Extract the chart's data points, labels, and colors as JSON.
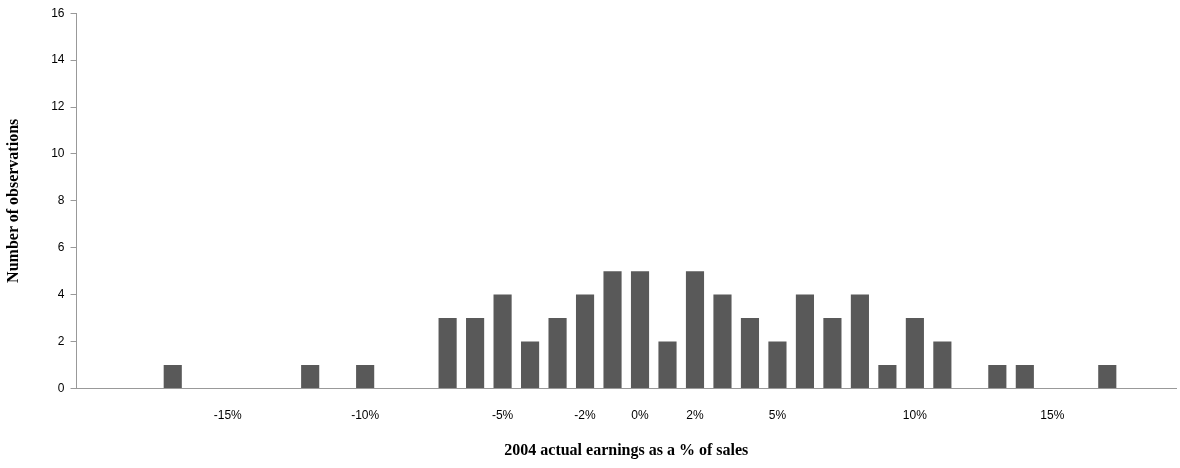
{
  "chart_data": {
    "type": "bar",
    "xlabel": "2004 actual earnings as a % of sales",
    "ylabel": "Number of observations",
    "categories": [
      null,
      null,
      null,
      null,
      null,
      "-15%",
      null,
      null,
      null,
      null,
      "-10%",
      null,
      null,
      null,
      null,
      "-5%",
      null,
      null,
      "-2%",
      null,
      "0%",
      null,
      "2%",
      null,
      null,
      "5%",
      null,
      null,
      null,
      null,
      "10%",
      null,
      null,
      null,
      null,
      "15%",
      null,
      null,
      null,
      null
    ],
    "values": [
      0,
      0,
      0,
      1,
      0,
      0,
      0,
      0,
      1,
      0,
      1,
      0,
      0,
      3,
      3,
      4,
      2,
      3,
      4,
      5,
      5,
      2,
      5,
      4,
      3,
      2,
      4,
      3,
      4,
      1,
      3,
      2,
      0,
      1,
      1,
      0,
      0,
      1,
      0,
      0
    ],
    "color": "#595959",
    "ylim": [
      0,
      16
    ],
    "yticks": [
      0,
      2,
      4,
      6,
      8,
      10,
      12,
      14,
      16
    ],
    "grid": false,
    "legend": false
  }
}
